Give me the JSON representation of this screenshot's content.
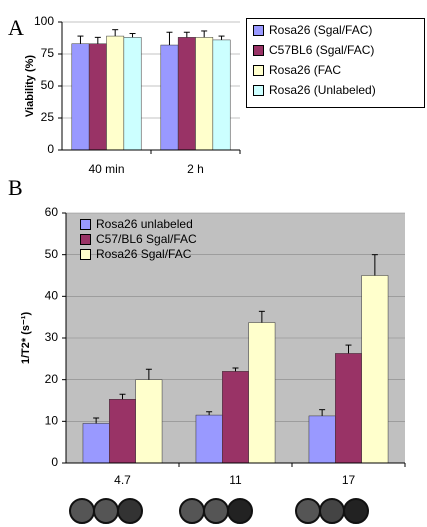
{
  "chart_data": [
    {
      "type": "bar",
      "label": "A",
      "ylabel": "Viability (%)",
      "categories": [
        "40 min",
        "2 h"
      ],
      "series": [
        {
          "name": "Rosa26 (Sgal/FAC)",
          "color": "#9999ff",
          "values": [
            83,
            82
          ],
          "errors": [
            6,
            10
          ]
        },
        {
          "name": "C57BL6 (Sgal/FAC)",
          "color": "#993366",
          "values": [
            83,
            88
          ],
          "errors": [
            5,
            4
          ]
        },
        {
          "name": "Rosa26 (FAC",
          "color": "#ffffcc",
          "values": [
            89,
            88
          ],
          "errors": [
            5,
            5
          ]
        },
        {
          "name": "Rosa26 (Unlabeled)",
          "color": "#ccffff",
          "values": [
            88,
            86
          ],
          "errors": [
            3,
            3
          ]
        }
      ],
      "ylim": [
        0,
        100
      ],
      "yticks": [
        0,
        25,
        50,
        75,
        100
      ],
      "grid": true,
      "legend": "outside right",
      "background": "#ffffff"
    },
    {
      "type": "bar",
      "label": "B",
      "ylabel": "1/T2* (s⁻¹)",
      "categories": [
        "4.7",
        "11",
        "17"
      ],
      "series": [
        {
          "name": "Rosa26 unlabeled",
          "color": "#9999ff",
          "values": [
            9.5,
            11.5,
            11.3
          ],
          "errors": [
            1.3,
            0.8,
            1.5
          ]
        },
        {
          "name": "C57/BL6 Sgal/FAC",
          "color": "#993366",
          "values": [
            15.3,
            22,
            26.3
          ],
          "errors": [
            1.2,
            0.8,
            2
          ]
        },
        {
          "name": "Rosa26 Sgal/FAC",
          "color": "#ffffcc",
          "values": [
            20,
            33.7,
            45
          ],
          "errors": [
            2.5,
            2.7,
            5
          ]
        }
      ],
      "ylim": [
        0,
        60
      ],
      "yticks": [
        0,
        10,
        20,
        30,
        40,
        50,
        60
      ],
      "grid": true,
      "legend": "upper left",
      "background": "#c0c0c0"
    }
  ]
}
